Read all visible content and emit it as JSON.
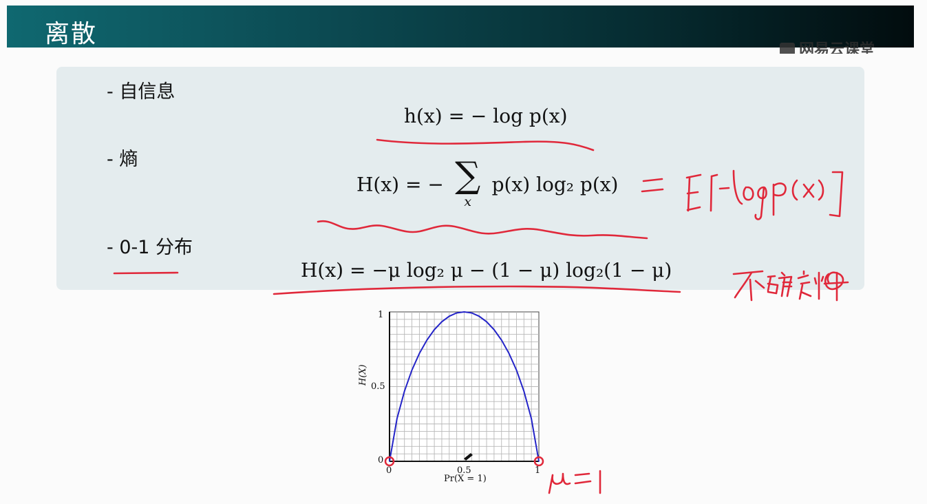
{
  "slide": {
    "title": "离散",
    "watermark": "网易云课堂"
  },
  "bullets": [
    {
      "label": "- 自信息"
    },
    {
      "label": "- 熵"
    },
    {
      "label": "- 0-1 分布"
    }
  ],
  "formulas": {
    "self_info": "h(x) = − log p(x)",
    "entropy_lhs": "H(x) = −",
    "entropy_sum_sub": "x",
    "entropy_rhs": "p(x) log₂ p(x)",
    "bernoulli": "H(x) = −μ log₂ μ − (1 − μ) log₂(1 − μ)"
  },
  "handwriting": {
    "entropy_note": "= E[−log p(x)]",
    "uncertainty_note": "不确定性",
    "mu_note": "μ=1"
  },
  "colors": {
    "title_bar_start": "#0f6870",
    "title_bar_end": "#020c0e",
    "panel": "#e4ecee",
    "ink_red": "#e0283a",
    "curve_blue": "#2424c8"
  },
  "chart_data": {
    "type": "line",
    "xlabel": "Pr(X = 1)",
    "ylabel": "H(X)",
    "xlim": [
      0,
      1
    ],
    "ylim": [
      0,
      1
    ],
    "x_ticks": [
      "0",
      "0.5",
      "1"
    ],
    "y_ticks": [
      "0",
      "0.5",
      "1"
    ],
    "grid": true,
    "x": [
      0,
      0.05,
      0.1,
      0.15,
      0.2,
      0.25,
      0.3,
      0.35,
      0.4,
      0.45,
      0.5,
      0.55,
      0.6,
      0.65,
      0.7,
      0.75,
      0.8,
      0.85,
      0.9,
      0.95,
      1
    ],
    "y": [
      0,
      0.286,
      0.469,
      0.61,
      0.722,
      0.811,
      0.881,
      0.934,
      0.971,
      0.993,
      1,
      0.993,
      0.971,
      0.934,
      0.881,
      0.811,
      0.722,
      0.61,
      0.469,
      0.286,
      0
    ]
  }
}
